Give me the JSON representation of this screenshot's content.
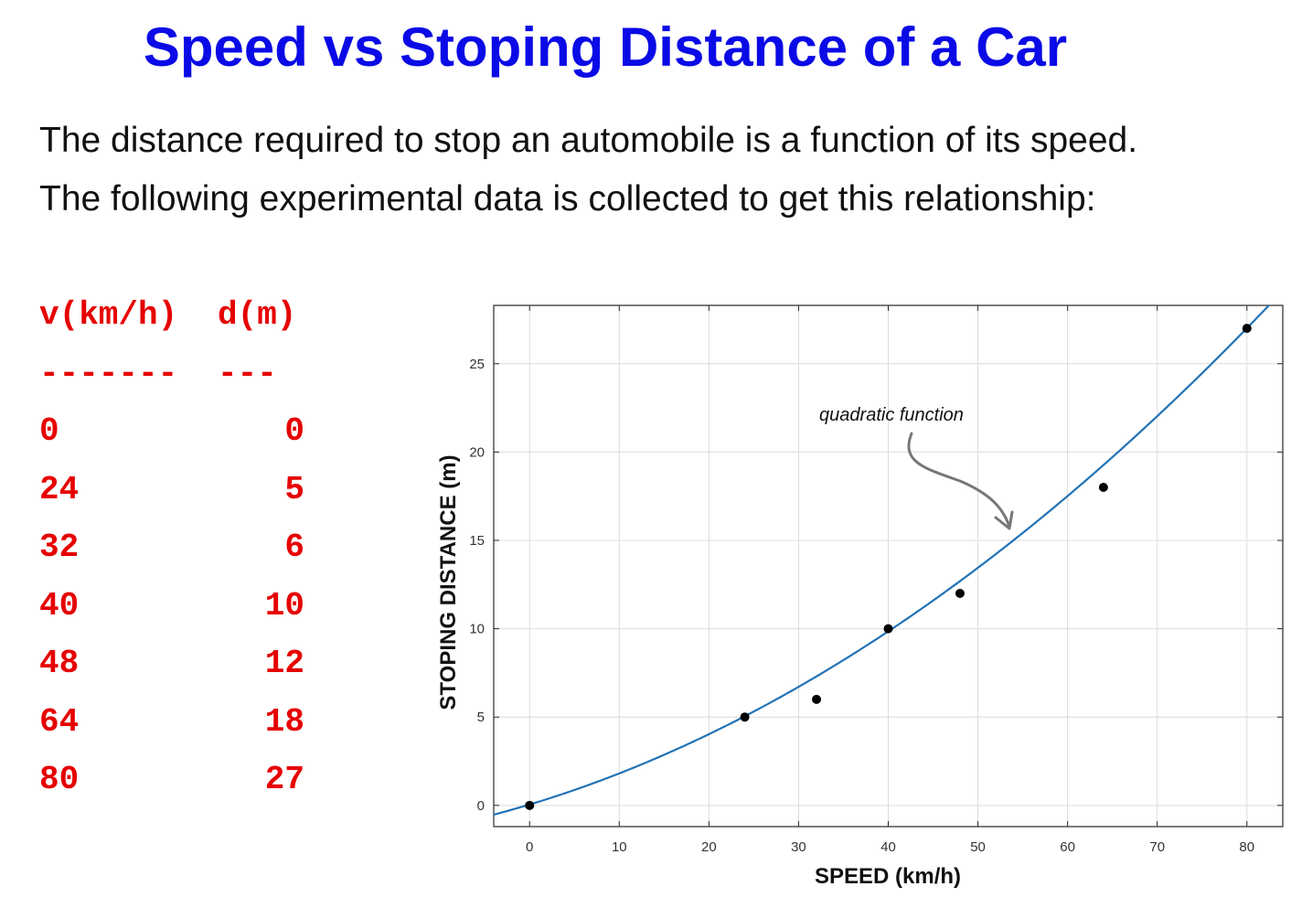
{
  "slide": {
    "title": "Speed vs Stoping Distance of a Car",
    "intro_line_1": "The distance required to stop an automobile is a function of its speed.",
    "intro_line_2": "The following experimental data is collected to get this relationship:"
  },
  "table": {
    "header_v": "v(km/h)",
    "header_d": "d(m)",
    "sep_v": "-------",
    "sep_d": "---",
    "rows": [
      {
        "v": "0",
        "d": "0"
      },
      {
        "v": "24",
        "d": "5"
      },
      {
        "v": "32",
        "d": "6"
      },
      {
        "v": "40",
        "d": "10"
      },
      {
        "v": "48",
        "d": "12"
      },
      {
        "v": "64",
        "d": "18"
      },
      {
        "v": "80",
        "d": "27"
      }
    ],
    "text_color": "#e60000"
  },
  "chart_data": {
    "type": "scatter",
    "title": "",
    "xlabel": "SPEED (km/h)",
    "ylabel": "STOPING DISTANCE (m)",
    "xlim": [
      -4,
      84
    ],
    "ylim": [
      -1.2,
      28.3
    ],
    "xticks": [
      0,
      10,
      20,
      30,
      40,
      50,
      60,
      70,
      80
    ],
    "yticks": [
      0,
      5,
      10,
      15,
      20,
      25
    ],
    "grid": true,
    "series": [
      {
        "kind": "points",
        "x": [
          0,
          24,
          32,
          40,
          48,
          64,
          80
        ],
        "y": [
          0,
          5,
          6,
          10,
          12,
          18,
          27
        ],
        "color": "#000000"
      },
      {
        "kind": "fit-curve",
        "model": "quadratic",
        "coefficients": [
          0.0023,
          0.153,
          0.05
        ],
        "color": "#2272b6"
      }
    ],
    "annotations": [
      {
        "text": "quadratic function",
        "target": {
          "x": 54,
          "y": 15
        }
      }
    ]
  },
  "colors": {
    "title": "#0a0ae6",
    "table_text": "#e60000",
    "curve": "#2272b6",
    "points": "#000000",
    "grid": "#dcdcdc",
    "arrow": "#777777"
  }
}
